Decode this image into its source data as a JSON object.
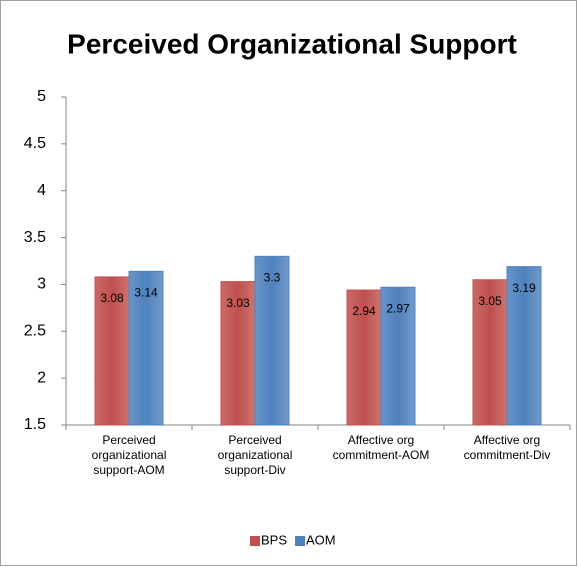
{
  "chart_data": {
    "type": "bar",
    "title": "Perceived Organizational Support",
    "categories": [
      "Perceived organizational support-AOM",
      "Perceived organizational support-Div",
      "Affective org commitment-AOM",
      "Affective org commitment-Div"
    ],
    "series": [
      {
        "name": "BPS",
        "color": "#c0504d",
        "values": [
          3.08,
          3.03,
          2.94,
          3.05
        ]
      },
      {
        "name": "AOM",
        "color": "#4f81bd",
        "values": [
          3.14,
          3.3,
          2.97,
          3.19
        ]
      }
    ],
    "ylim": [
      1.5,
      5
    ],
    "yticks": [
      1.5,
      2,
      2.5,
      3,
      3.5,
      4,
      4.5,
      5
    ],
    "grid": false,
    "legend": "bottom"
  }
}
